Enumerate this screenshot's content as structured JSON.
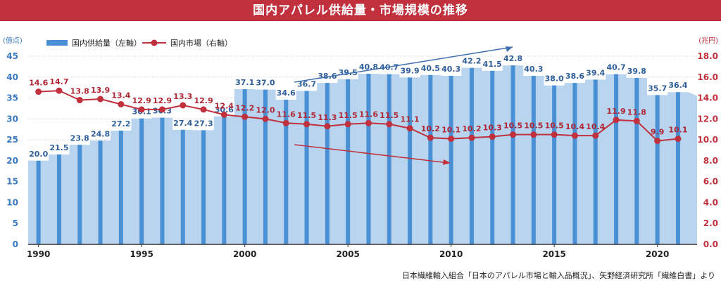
{
  "title": "国内アパレル供給量・市場規模の推移",
  "source": "日本繊維輸入組合「日本のアパレル市場と輸入品概況」、矢野経済研究所「繊維白書」より",
  "colors": {
    "title_bg": "#c0303d",
    "bar": "#4a90d4",
    "area": "#b8d4ef",
    "line": "#c0303d",
    "arrow_blue": "#3f6fb0",
    "arrow_red": "#c0303d",
    "text": "#222222"
  },
  "chart_data": {
    "type": "bar+line",
    "left_axis_unit": "(億点)",
    "right_axis_unit": "(兆円)",
    "left_ylim": [
      0,
      45
    ],
    "left_ticks": [
      "0",
      "5",
      "10",
      "15",
      "20",
      "25",
      "30",
      "35",
      "40",
      "45"
    ],
    "right_ylim": [
      0,
      18
    ],
    "right_ticks": [
      "0.0",
      "2.0",
      "4.0",
      "6.0",
      "8.0",
      "10.0",
      "12.0",
      "14.0",
      "16.0",
      "18.0"
    ],
    "x_tick_labels": [
      "1990",
      "1995",
      "2000",
      "2005",
      "2010",
      "2015",
      "2020"
    ],
    "years": [
      1990,
      1991,
      1992,
      1993,
      1994,
      1995,
      1996,
      1997,
      1998,
      1999,
      2000,
      2001,
      2002,
      2003,
      2004,
      2005,
      2006,
      2007,
      2008,
      2009,
      2010,
      2011,
      2012,
      2013,
      2014,
      2015,
      2016,
      2017,
      2018,
      2019,
      2020,
      2021
    ],
    "series": [
      {
        "name": "国内供給量（左軸）",
        "axis": "left",
        "values": [
          20.0,
          21.5,
          23.8,
          24.8,
          27.2,
          30.1,
          30.3,
          27.4,
          27.3,
          30.6,
          37.1,
          37.0,
          34.6,
          36.7,
          38.6,
          39.5,
          40.8,
          40.7,
          39.9,
          40.5,
          40.3,
          42.2,
          41.5,
          42.8,
          40.3,
          38.0,
          38.6,
          39.4,
          40.7,
          39.8,
          35.7,
          36.4
        ],
        "labels": [
          "20.0",
          "21.5",
          "23.8",
          "24.8",
          "27.2",
          "30.1",
          "30.3",
          "27.4",
          "27.3",
          "30.6",
          "37.1",
          "37.0",
          "34.6",
          "36.7",
          "38.6",
          "39.5",
          "40.8",
          "40.7",
          "39.9",
          "40.5",
          "40.3",
          "42.2",
          "41.5",
          "42.8",
          "40.3",
          "38.0",
          "38.6",
          "39.4",
          "40.7",
          "39.8",
          "35.7",
          "36.4"
        ]
      },
      {
        "name": "国内市場（右軸）",
        "axis": "right",
        "values": [
          14.6,
          14.7,
          13.8,
          13.9,
          13.4,
          12.9,
          12.9,
          13.3,
          12.9,
          12.4,
          12.2,
          12.0,
          11.6,
          11.5,
          11.3,
          11.5,
          11.6,
          11.5,
          11.1,
          10.2,
          10.1,
          10.2,
          10.3,
          10.5,
          10.5,
          10.5,
          10.4,
          10.4,
          11.9,
          11.8,
          9.9,
          10.1
        ],
        "labels": [
          "14.6",
          "14.7",
          "13.8",
          "13.9",
          "13.4",
          "12.9",
          "12.9",
          "13.3",
          "12.9",
          "12.4",
          "12.2",
          "12.0",
          "11.6",
          "11.5",
          "11.3",
          "11.5",
          "11.6",
          "11.5",
          "11.1",
          "10.2",
          "10.1",
          "10.2",
          "10.3",
          "10.5",
          "10.5",
          "10.5",
          "10.4",
          "10.4",
          "11.9",
          "11.8",
          "9.9",
          "10.1"
        ]
      }
    ],
    "area_end_value": 35.5,
    "legend_position": "top-left",
    "annotations": [
      "upward-trend-arrow",
      "downward-trend-arrow"
    ]
  }
}
